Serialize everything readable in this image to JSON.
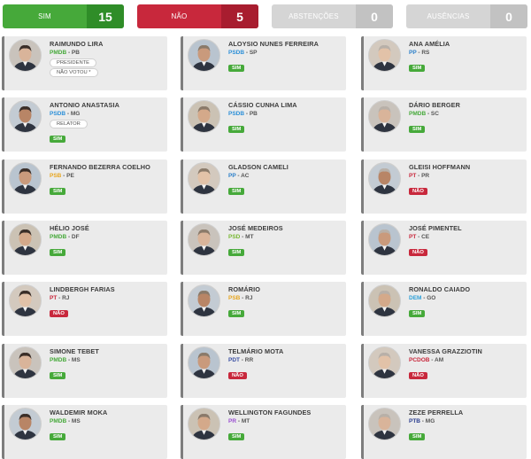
{
  "summary": [
    {
      "label": "SIM",
      "count": "15",
      "color": "#46a93a"
    },
    {
      "label": "NÃO",
      "count": "5",
      "color": "#c8283c"
    },
    {
      "label": "ABSTENÇÕES",
      "count": "0",
      "color": "#d5d5d5"
    },
    {
      "label": "AUSÊNCIAS",
      "count": "0",
      "color": "#d5d5d5"
    }
  ],
  "party_colors": {
    "PMDB": "#46a93a",
    "PSDB": "#2b8fd8",
    "PP": "#2b7fc9",
    "PSB": "#e7a620",
    "PT": "#c8283c",
    "PSD": "#78b833",
    "DEM": "#2b9fd8",
    "PDT": "#3a4fa3",
    "PCDOB": "#c8283c",
    "PR": "#9a4fd1",
    "PTB": "#2a3d8f"
  },
  "senators": [
    {
      "name": "RAIMUNDO LIRA",
      "party": "PMDB",
      "uf": "PB",
      "role": "PRESIDENTE",
      "vote": "NÃO VOTOU *",
      "avatar": "portrait-icon"
    },
    {
      "name": "ALOYSIO NUNES FERREIRA",
      "party": "PSDB",
      "uf": "SP",
      "vote": "SIM",
      "avatar": "portrait-icon"
    },
    {
      "name": "ANA AMÉLIA",
      "party": "PP",
      "uf": "RS",
      "vote": "SIM",
      "avatar": "portrait-icon"
    },
    {
      "name": "ANTONIO ANASTASIA",
      "party": "PSDB",
      "uf": "MG",
      "role": "RELATOR",
      "vote": "SIM",
      "avatar": "portrait-icon"
    },
    {
      "name": "CÁSSIO CUNHA LIMA",
      "party": "PSDB",
      "uf": "PB",
      "vote": "SIM",
      "avatar": "portrait-icon"
    },
    {
      "name": "DÁRIO BERGER",
      "party": "PMDB",
      "uf": "SC",
      "vote": "SIM",
      "avatar": "portrait-icon"
    },
    {
      "name": "FERNANDO BEZERRA COELHO",
      "party": "PSB",
      "uf": "PE",
      "vote": "SIM",
      "avatar": "portrait-icon"
    },
    {
      "name": "GLADSON CAMELI",
      "party": "PP",
      "uf": "AC",
      "vote": "SIM",
      "avatar": "portrait-icon"
    },
    {
      "name": "GLEISI HOFFMANN",
      "party": "PT",
      "uf": "PR",
      "vote": "NÃO",
      "avatar": "portrait-icon"
    },
    {
      "name": "HÉLIO JOSÉ",
      "party": "PMDB",
      "uf": "DF",
      "vote": "SIM",
      "avatar": "portrait-icon"
    },
    {
      "name": "JOSÉ MEDEIROS",
      "party": "PSD",
      "uf": "MT",
      "vote": "SIM",
      "avatar": "portrait-icon"
    },
    {
      "name": "JOSÉ PIMENTEL",
      "party": "PT",
      "uf": "CE",
      "vote": "NÃO",
      "avatar": "portrait-icon"
    },
    {
      "name": "LINDBERGH FARIAS",
      "party": "PT",
      "uf": "RJ",
      "vote": "NÃO",
      "avatar": "portrait-icon"
    },
    {
      "name": "ROMÁRIO",
      "party": "PSB",
      "uf": "RJ",
      "vote": "SIM",
      "avatar": "portrait-icon"
    },
    {
      "name": "RONALDO CAIADO",
      "party": "DEM",
      "uf": "GO",
      "vote": "SIM",
      "avatar": "portrait-icon"
    },
    {
      "name": "SIMONE TEBET",
      "party": "PMDB",
      "uf": "MS",
      "vote": "SIM",
      "avatar": "portrait-icon"
    },
    {
      "name": "TELMÁRIO MOTA",
      "party": "PDT",
      "uf": "RR",
      "vote": "NÃO",
      "avatar": "portrait-icon"
    },
    {
      "name": "VANESSA GRAZZIOTIN",
      "party": "PCDOB",
      "uf": "AM",
      "vote": "NÃO",
      "avatar": "portrait-icon"
    },
    {
      "name": "WALDEMIR MOKA",
      "party": "PMDB",
      "uf": "MS",
      "vote": "SIM",
      "avatar": "portrait-icon"
    },
    {
      "name": "WELLINGTON FAGUNDES",
      "party": "PR",
      "uf": "MT",
      "vote": "SIM",
      "avatar": "portrait-icon"
    },
    {
      "name": "ZEZE PERRELLA",
      "party": "PTB",
      "uf": "MG",
      "vote": "SIM",
      "avatar": "portrait-icon"
    }
  ]
}
